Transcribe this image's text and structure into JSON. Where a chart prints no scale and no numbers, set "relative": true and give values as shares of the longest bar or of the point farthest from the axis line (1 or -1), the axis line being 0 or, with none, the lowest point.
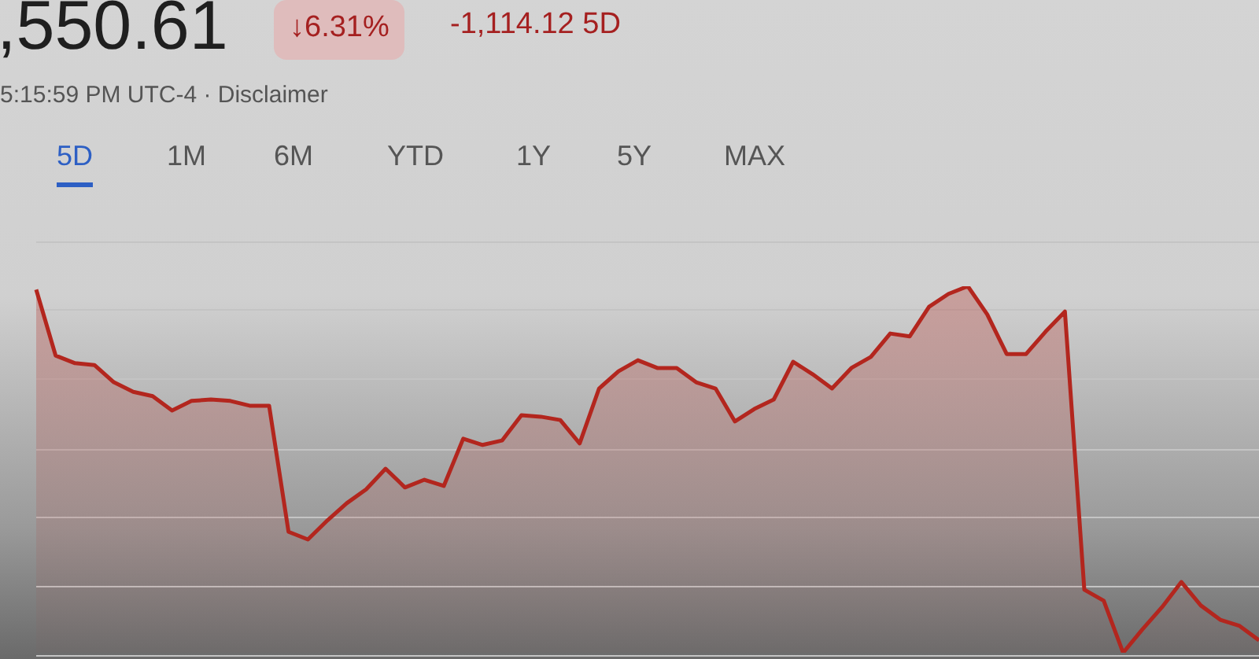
{
  "chart_data": {
    "type": "area",
    "title": ",550.61",
    "annotations": [
      "↓6.31%",
      "-1,114.12 5D",
      "5:15:59 PM UTC-4 · Disclaimer",
      "5D",
      "1M",
      "6M",
      "YTD",
      "1Y",
      "5Y",
      "MAX"
    ],
    "relative": true,
    "grid": "y",
    "legend": false,
    "marker": "none",
    "line_style": "solid",
    "categories": [
      null,
      null,
      null,
      null,
      null,
      null,
      null,
      null,
      null,
      null,
      null,
      null,
      null,
      null,
      null,
      null,
      null,
      null,
      null,
      null,
      null,
      null,
      null,
      null,
      null,
      null,
      null,
      null,
      null,
      null,
      null,
      null,
      null,
      null,
      null,
      null,
      null,
      null,
      null,
      null,
      null,
      null,
      null,
      null,
      null,
      null,
      null,
      null,
      null,
      null,
      null,
      null,
      null,
      null,
      null,
      null,
      null,
      null,
      null,
      null,
      null,
      null,
      null,
      null
    ],
    "series": [
      {
        "color": "#b3261e",
        "values": [
          0.991,
          0.811,
          0.79,
          0.785,
          0.738,
          0.712,
          0.7,
          0.661,
          0.687,
          0.691,
          0.687,
          0.674,
          0.674,
          0.33,
          0.309,
          0.361,
          0.408,
          0.446,
          0.502,
          0.451,
          0.472,
          0.455,
          0.584,
          0.567,
          0.579,
          0.648,
          0.644,
          0.635,
          0.571,
          0.721,
          0.768,
          0.798,
          0.777,
          0.777,
          0.738,
          0.721,
          0.631,
          0.665,
          0.691,
          0.794,
          0.76,
          0.721,
          0.777,
          0.807,
          0.871,
          0.863,
          0.944,
          0.979,
          1,
          0.923,
          0.815,
          0.815,
          0.876,
          0.931,
          0.172,
          0.142,
          0,
          0.064,
          0.124,
          0.193,
          0.129,
          0.09,
          0.073,
          0.034
        ]
      }
    ]
  }
}
